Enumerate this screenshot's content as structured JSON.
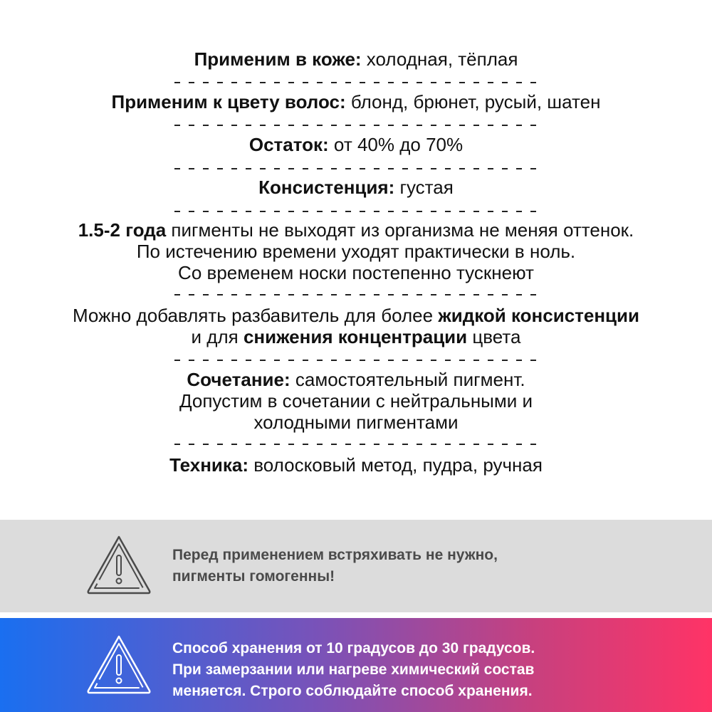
{
  "specs": [
    {
      "bold": "Применим в коже:",
      "text": " холодная, тёплая"
    },
    {
      "bold": "Применим к цвету волос:",
      "text": " блонд, брюнет, русый, шатен"
    },
    {
      "bold": "Остаток:",
      "text": " от 40% до 70%"
    },
    {
      "bold": "Консистенция:",
      "text": " густая"
    }
  ],
  "duration": {
    "bold": "1.5-2 года",
    "text": " пигменты не выходят из организма не меняя оттенок.",
    "line2": "По истечению времени уходят практически в ноль.",
    "line3": "Со временем носки постепенно тускнеют"
  },
  "thinner": {
    "t1": "Можно добавлять разбавитель для более ",
    "b1": "жидкой консистенции",
    "t2": "и для ",
    "b2": "снижения концентрации",
    "t3": " цвета"
  },
  "combo": {
    "bold": "Сочетание:",
    "text": " самостоятельный пигмент.",
    "line2": "Допустим в сочетании с нейтральными и",
    "line3": "холодными пигментами"
  },
  "technique": {
    "bold": "Техника:",
    "text": " волосковый метод, пудра, ручная"
  },
  "notice_gray": {
    "icon": "warning-triangle-icon",
    "line1": "Перед применением встряхивать не нужно,",
    "line2": "пигменты гомогенны!",
    "color": "#4a4a4a"
  },
  "notice_storage": {
    "icon": "warning-triangle-icon",
    "line1": "Способ хранения от 10 градусов до 30 градусов.",
    "line2": "При замерзании или нагреве химический состав",
    "line3": "меняется. Строго соблюдайте способ хранения.",
    "gradient": [
      "#1a6ff0",
      "#ff3366"
    ]
  }
}
